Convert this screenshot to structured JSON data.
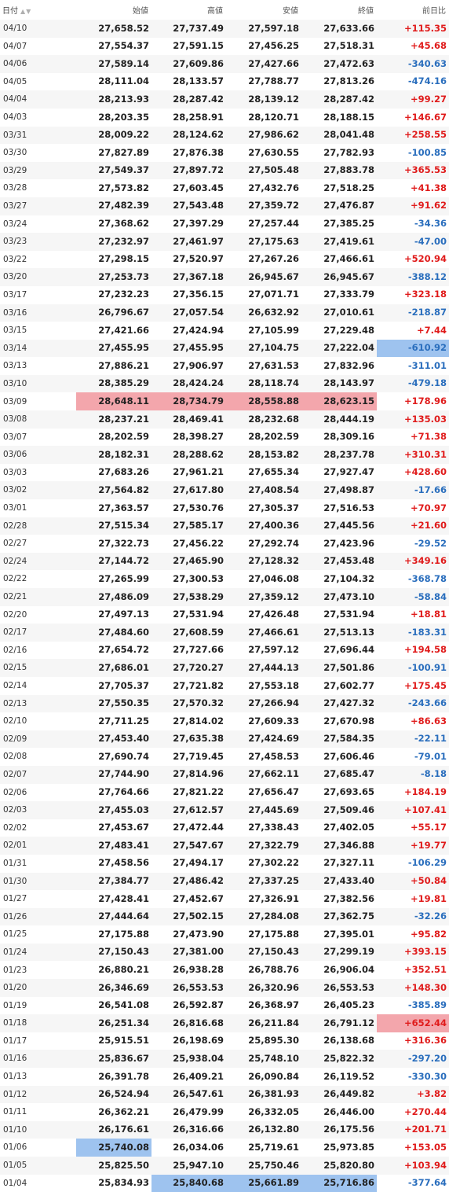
{
  "headers": {
    "date": "日付",
    "open": "始値",
    "high": "高値",
    "low": "安値",
    "close": "終値",
    "change": "前日比"
  },
  "rows": [
    {
      "date": "04/10",
      "open": "27,658.52",
      "high": "27,737.49",
      "low": "27,597.18",
      "close": "27,633.66",
      "change": "+115.35"
    },
    {
      "date": "04/07",
      "open": "27,554.37",
      "high": "27,591.15",
      "low": "27,456.25",
      "close": "27,518.31",
      "change": "+45.68"
    },
    {
      "date": "04/06",
      "open": "27,589.14",
      "high": "27,609.86",
      "low": "27,427.66",
      "close": "27,472.63",
      "change": "-340.63"
    },
    {
      "date": "04/05",
      "open": "28,111.04",
      "high": "28,133.57",
      "low": "27,788.77",
      "close": "27,813.26",
      "change": "-474.16"
    },
    {
      "date": "04/04",
      "open": "28,213.93",
      "high": "28,287.42",
      "low": "28,139.12",
      "close": "28,287.42",
      "change": "+99.27"
    },
    {
      "date": "04/03",
      "open": "28,203.35",
      "high": "28,258.91",
      "low": "28,120.71",
      "close": "28,188.15",
      "change": "+146.67"
    },
    {
      "date": "03/31",
      "open": "28,009.22",
      "high": "28,124.62",
      "low": "27,986.62",
      "close": "28,041.48",
      "change": "+258.55"
    },
    {
      "date": "03/30",
      "open": "27,827.89",
      "high": "27,876.38",
      "low": "27,630.55",
      "close": "27,782.93",
      "change": "-100.85"
    },
    {
      "date": "03/29",
      "open": "27,549.37",
      "high": "27,897.72",
      "low": "27,505.48",
      "close": "27,883.78",
      "change": "+365.53"
    },
    {
      "date": "03/28",
      "open": "27,573.82",
      "high": "27,603.45",
      "low": "27,432.76",
      "close": "27,518.25",
      "change": "+41.38"
    },
    {
      "date": "03/27",
      "open": "27,482.39",
      "high": "27,543.48",
      "low": "27,359.72",
      "close": "27,476.87",
      "change": "+91.62"
    },
    {
      "date": "03/24",
      "open": "27,368.62",
      "high": "27,397.29",
      "low": "27,257.44",
      "close": "27,385.25",
      "change": "-34.36"
    },
    {
      "date": "03/23",
      "open": "27,232.97",
      "high": "27,461.97",
      "low": "27,175.63",
      "close": "27,419.61",
      "change": "-47.00"
    },
    {
      "date": "03/22",
      "open": "27,298.15",
      "high": "27,520.97",
      "low": "27,267.26",
      "close": "27,466.61",
      "change": "+520.94"
    },
    {
      "date": "03/20",
      "open": "27,253.73",
      "high": "27,367.18",
      "low": "26,945.67",
      "close": "26,945.67",
      "change": "-388.12"
    },
    {
      "date": "03/17",
      "open": "27,232.23",
      "high": "27,356.15",
      "low": "27,071.71",
      "close": "27,333.79",
      "change": "+323.18"
    },
    {
      "date": "03/16",
      "open": "26,796.67",
      "high": "27,057.54",
      "low": "26,632.92",
      "close": "27,010.61",
      "change": "-218.87"
    },
    {
      "date": "03/15",
      "open": "27,421.66",
      "high": "27,424.94",
      "low": "27,105.99",
      "close": "27,229.48",
      "change": "+7.44"
    },
    {
      "date": "03/14",
      "open": "27,455.95",
      "high": "27,455.95",
      "low": "27,104.75",
      "close": "27,222.04",
      "change": "-610.92",
      "hl": {
        "change": "blue"
      }
    },
    {
      "date": "03/13",
      "open": "27,886.21",
      "high": "27,906.97",
      "low": "27,631.53",
      "close": "27,832.96",
      "change": "-311.01"
    },
    {
      "date": "03/10",
      "open": "28,385.29",
      "high": "28,424.24",
      "low": "28,118.74",
      "close": "28,143.97",
      "change": "-479.18"
    },
    {
      "date": "03/09",
      "open": "28,648.11",
      "high": "28,734.79",
      "low": "28,558.88",
      "close": "28,623.15",
      "change": "+178.96",
      "hl": {
        "open": "red",
        "high": "red",
        "low": "red",
        "close": "red"
      }
    },
    {
      "date": "03/08",
      "open": "28,237.21",
      "high": "28,469.41",
      "low": "28,232.68",
      "close": "28,444.19",
      "change": "+135.03"
    },
    {
      "date": "03/07",
      "open": "28,202.59",
      "high": "28,398.27",
      "low": "28,202.59",
      "close": "28,309.16",
      "change": "+71.38"
    },
    {
      "date": "03/06",
      "open": "28,182.31",
      "high": "28,288.62",
      "low": "28,153.82",
      "close": "28,237.78",
      "change": "+310.31"
    },
    {
      "date": "03/03",
      "open": "27,683.26",
      "high": "27,961.21",
      "low": "27,655.34",
      "close": "27,927.47",
      "change": "+428.60"
    },
    {
      "date": "03/02",
      "open": "27,564.82",
      "high": "27,617.80",
      "low": "27,408.54",
      "close": "27,498.87",
      "change": "-17.66"
    },
    {
      "date": "03/01",
      "open": "27,363.57",
      "high": "27,530.76",
      "low": "27,305.37",
      "close": "27,516.53",
      "change": "+70.97"
    },
    {
      "date": "02/28",
      "open": "27,515.34",
      "high": "27,585.17",
      "low": "27,400.36",
      "close": "27,445.56",
      "change": "+21.60"
    },
    {
      "date": "02/27",
      "open": "27,322.73",
      "high": "27,456.22",
      "low": "27,292.74",
      "close": "27,423.96",
      "change": "-29.52"
    },
    {
      "date": "02/24",
      "open": "27,144.72",
      "high": "27,465.90",
      "low": "27,128.32",
      "close": "27,453.48",
      "change": "+349.16"
    },
    {
      "date": "02/22",
      "open": "27,265.99",
      "high": "27,300.53",
      "low": "27,046.08",
      "close": "27,104.32",
      "change": "-368.78"
    },
    {
      "date": "02/21",
      "open": "27,486.09",
      "high": "27,538.29",
      "low": "27,359.12",
      "close": "27,473.10",
      "change": "-58.84"
    },
    {
      "date": "02/20",
      "open": "27,497.13",
      "high": "27,531.94",
      "low": "27,426.48",
      "close": "27,531.94",
      "change": "+18.81"
    },
    {
      "date": "02/17",
      "open": "27,484.60",
      "high": "27,608.59",
      "low": "27,466.61",
      "close": "27,513.13",
      "change": "-183.31"
    },
    {
      "date": "02/16",
      "open": "27,654.72",
      "high": "27,727.66",
      "low": "27,597.12",
      "close": "27,696.44",
      "change": "+194.58"
    },
    {
      "date": "02/15",
      "open": "27,686.01",
      "high": "27,720.27",
      "low": "27,444.13",
      "close": "27,501.86",
      "change": "-100.91"
    },
    {
      "date": "02/14",
      "open": "27,705.37",
      "high": "27,721.82",
      "low": "27,553.18",
      "close": "27,602.77",
      "change": "+175.45"
    },
    {
      "date": "02/13",
      "open": "27,550.35",
      "high": "27,570.32",
      "low": "27,266.94",
      "close": "27,427.32",
      "change": "-243.66"
    },
    {
      "date": "02/10",
      "open": "27,711.25",
      "high": "27,814.02",
      "low": "27,609.33",
      "close": "27,670.98",
      "change": "+86.63"
    },
    {
      "date": "02/09",
      "open": "27,453.40",
      "high": "27,635.38",
      "low": "27,424.69",
      "close": "27,584.35",
      "change": "-22.11"
    },
    {
      "date": "02/08",
      "open": "27,690.74",
      "high": "27,719.45",
      "low": "27,458.53",
      "close": "27,606.46",
      "change": "-79.01"
    },
    {
      "date": "02/07",
      "open": "27,744.90",
      "high": "27,814.96",
      "low": "27,662.11",
      "close": "27,685.47",
      "change": "-8.18"
    },
    {
      "date": "02/06",
      "open": "27,764.66",
      "high": "27,821.22",
      "low": "27,656.47",
      "close": "27,693.65",
      "change": "+184.19"
    },
    {
      "date": "02/03",
      "open": "27,455.03",
      "high": "27,612.57",
      "low": "27,445.69",
      "close": "27,509.46",
      "change": "+107.41"
    },
    {
      "date": "02/02",
      "open": "27,453.67",
      "high": "27,472.44",
      "low": "27,338.43",
      "close": "27,402.05",
      "change": "+55.17"
    },
    {
      "date": "02/01",
      "open": "27,483.41",
      "high": "27,547.67",
      "low": "27,322.79",
      "close": "27,346.88",
      "change": "+19.77"
    },
    {
      "date": "01/31",
      "open": "27,458.56",
      "high": "27,494.17",
      "low": "27,302.22",
      "close": "27,327.11",
      "change": "-106.29"
    },
    {
      "date": "01/30",
      "open": "27,384.77",
      "high": "27,486.42",
      "low": "27,337.25",
      "close": "27,433.40",
      "change": "+50.84"
    },
    {
      "date": "01/27",
      "open": "27,428.41",
      "high": "27,452.67",
      "low": "27,326.91",
      "close": "27,382.56",
      "change": "+19.81"
    },
    {
      "date": "01/26",
      "open": "27,444.64",
      "high": "27,502.15",
      "low": "27,284.08",
      "close": "27,362.75",
      "change": "-32.26"
    },
    {
      "date": "01/25",
      "open": "27,175.88",
      "high": "27,473.90",
      "low": "27,175.88",
      "close": "27,395.01",
      "change": "+95.82"
    },
    {
      "date": "01/24",
      "open": "27,150.43",
      "high": "27,381.00",
      "low": "27,150.43",
      "close": "27,299.19",
      "change": "+393.15"
    },
    {
      "date": "01/23",
      "open": "26,880.21",
      "high": "26,938.28",
      "low": "26,788.76",
      "close": "26,906.04",
      "change": "+352.51"
    },
    {
      "date": "01/20",
      "open": "26,346.69",
      "high": "26,553.53",
      "low": "26,320.96",
      "close": "26,553.53",
      "change": "+148.30"
    },
    {
      "date": "01/19",
      "open": "26,541.08",
      "high": "26,592.87",
      "low": "26,368.97",
      "close": "26,405.23",
      "change": "-385.89"
    },
    {
      "date": "01/18",
      "open": "26,251.34",
      "high": "26,816.68",
      "low": "26,211.84",
      "close": "26,791.12",
      "change": "+652.44",
      "hl": {
        "change": "red"
      }
    },
    {
      "date": "01/17",
      "open": "25,915.51",
      "high": "26,198.69",
      "low": "25,895.30",
      "close": "26,138.68",
      "change": "+316.36"
    },
    {
      "date": "01/16",
      "open": "25,836.67",
      "high": "25,938.04",
      "low": "25,748.10",
      "close": "25,822.32",
      "change": "-297.20"
    },
    {
      "date": "01/13",
      "open": "26,391.78",
      "high": "26,409.21",
      "low": "26,090.84",
      "close": "26,119.52",
      "change": "-330.30"
    },
    {
      "date": "01/12",
      "open": "26,524.94",
      "high": "26,547.61",
      "low": "26,381.93",
      "close": "26,449.82",
      "change": "+3.82"
    },
    {
      "date": "01/11",
      "open": "26,362.21",
      "high": "26,479.99",
      "low": "26,332.05",
      "close": "26,446.00",
      "change": "+270.44"
    },
    {
      "date": "01/10",
      "open": "26,176.61",
      "high": "26,316.66",
      "low": "26,132.80",
      "close": "26,175.56",
      "change": "+201.71"
    },
    {
      "date": "01/06",
      "open": "25,740.08",
      "high": "26,034.06",
      "low": "25,719.61",
      "close": "25,973.85",
      "change": "+153.05",
      "hl": {
        "open": "blue"
      }
    },
    {
      "date": "01/05",
      "open": "25,825.50",
      "high": "25,947.10",
      "low": "25,750.46",
      "close": "25,820.80",
      "change": "+103.94"
    },
    {
      "date": "01/04",
      "open": "25,834.93",
      "high": "25,840.68",
      "low": "25,661.89",
      "close": "25,716.86",
      "change": "-377.64",
      "hl": {
        "high": "blue",
        "low": "blue",
        "close": "blue"
      }
    }
  ],
  "colors": {
    "positive": "#e01b1b",
    "negative": "#2a6ebd",
    "highlight_red": "#f3a6ac",
    "highlight_blue": "#9ec3ef"
  }
}
